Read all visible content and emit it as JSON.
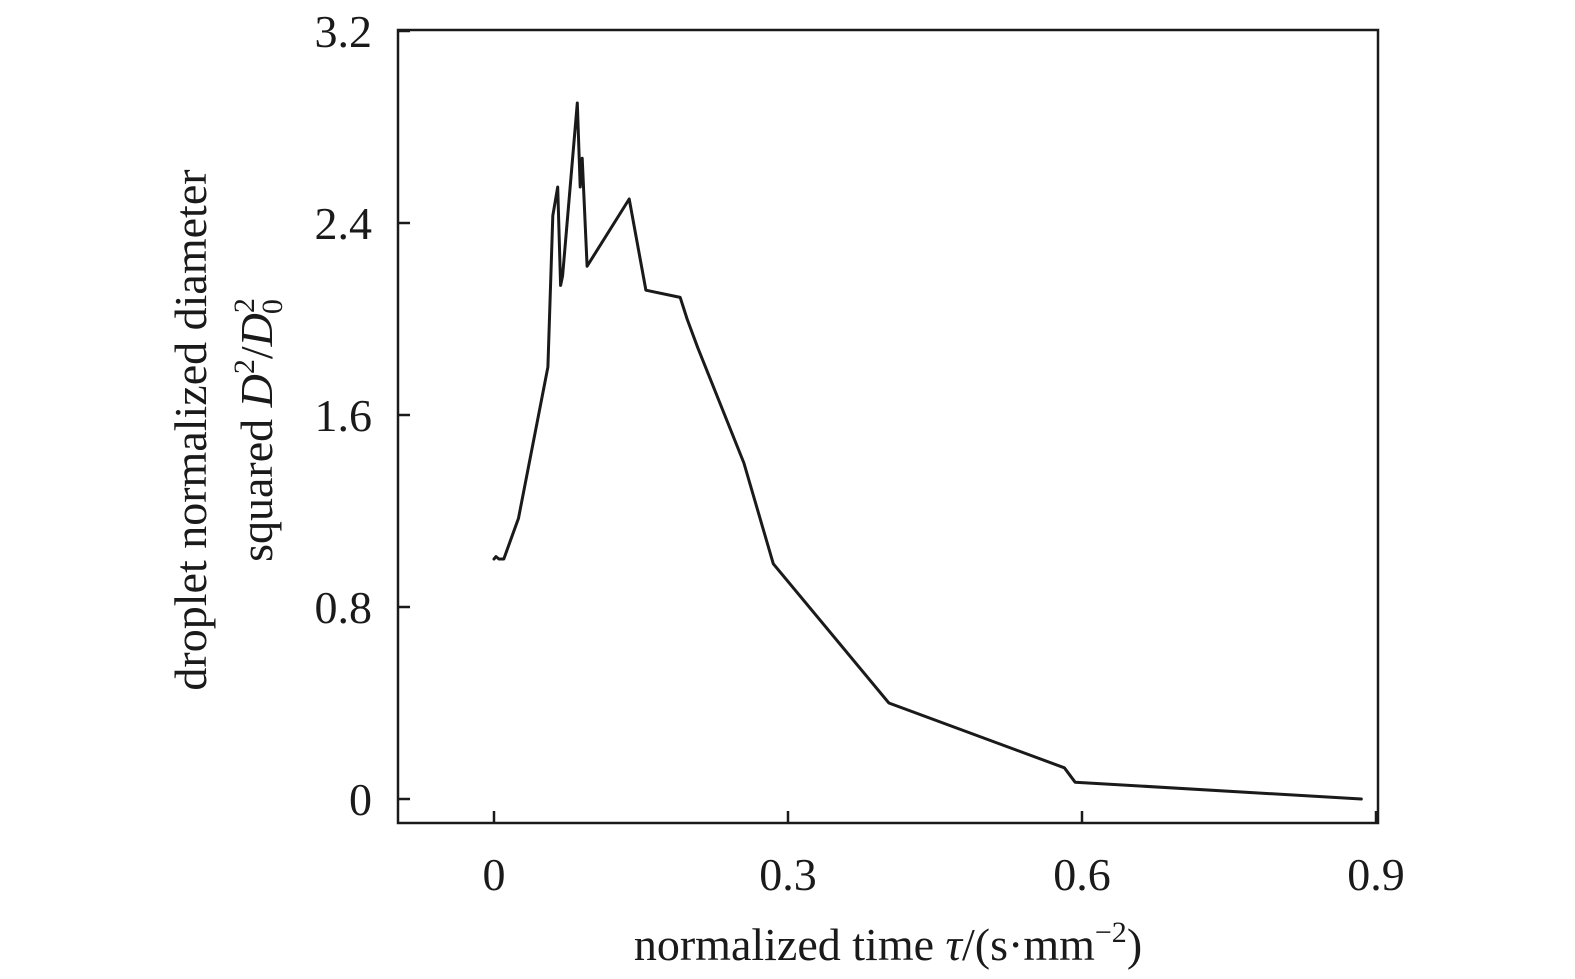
{
  "chart_data": {
    "type": "line",
    "title": "",
    "xlabel": "normalized time τ/(s·mm⁻²)",
    "ylabel": "droplet normalized diameter squared D²/D₀²",
    "xlabel_parts": {
      "prefix": "normalized time ",
      "symbol": "τ",
      "unit_open": "/(s·mm",
      "unit_exp": "−2",
      "unit_close": ")"
    },
    "ylabel_parts": {
      "line1": "droplet normalized diameter",
      "line2_prefix": "squared ",
      "num_symbol": "D",
      "num_exp": "2",
      "slash": "/",
      "den_symbol": "D",
      "den_exp": "2",
      "den_sub": "0"
    },
    "xlim": [
      -0.1,
      0.9
    ],
    "ylim": [
      -0.1,
      3.2
    ],
    "xticks": [
      0,
      0.3,
      0.6,
      0.9
    ],
    "xtick_labels": [
      "0",
      "0.3",
      "0.6",
      "0.9"
    ],
    "yticks": [
      0,
      0.8,
      1.6,
      2.4,
      3.2
    ],
    "ytick_labels": [
      "0",
      "0.8",
      "1.6",
      "2.4",
      "3.2"
    ],
    "grid": false,
    "legend": "none",
    "line_color": "#1a1a1a",
    "series": [
      {
        "x": [
          0.0,
          0.002,
          0.005,
          0.01,
          0.025,
          0.055,
          0.06,
          0.065,
          0.068,
          0.07,
          0.085,
          0.088,
          0.09,
          0.095,
          0.138,
          0.155,
          0.19,
          0.197,
          0.208,
          0.255,
          0.285,
          0.403,
          0.582,
          0.593,
          0.885
        ],
        "y": [
          1.0,
          1.01,
          1.0,
          1.0,
          1.17,
          1.8,
          2.43,
          2.55,
          2.14,
          2.18,
          2.9,
          2.55,
          2.67,
          2.22,
          2.5,
          2.12,
          2.09,
          2.0,
          1.88,
          1.4,
          0.98,
          0.4,
          0.13,
          0.07,
          0.0
        ]
      }
    ]
  }
}
